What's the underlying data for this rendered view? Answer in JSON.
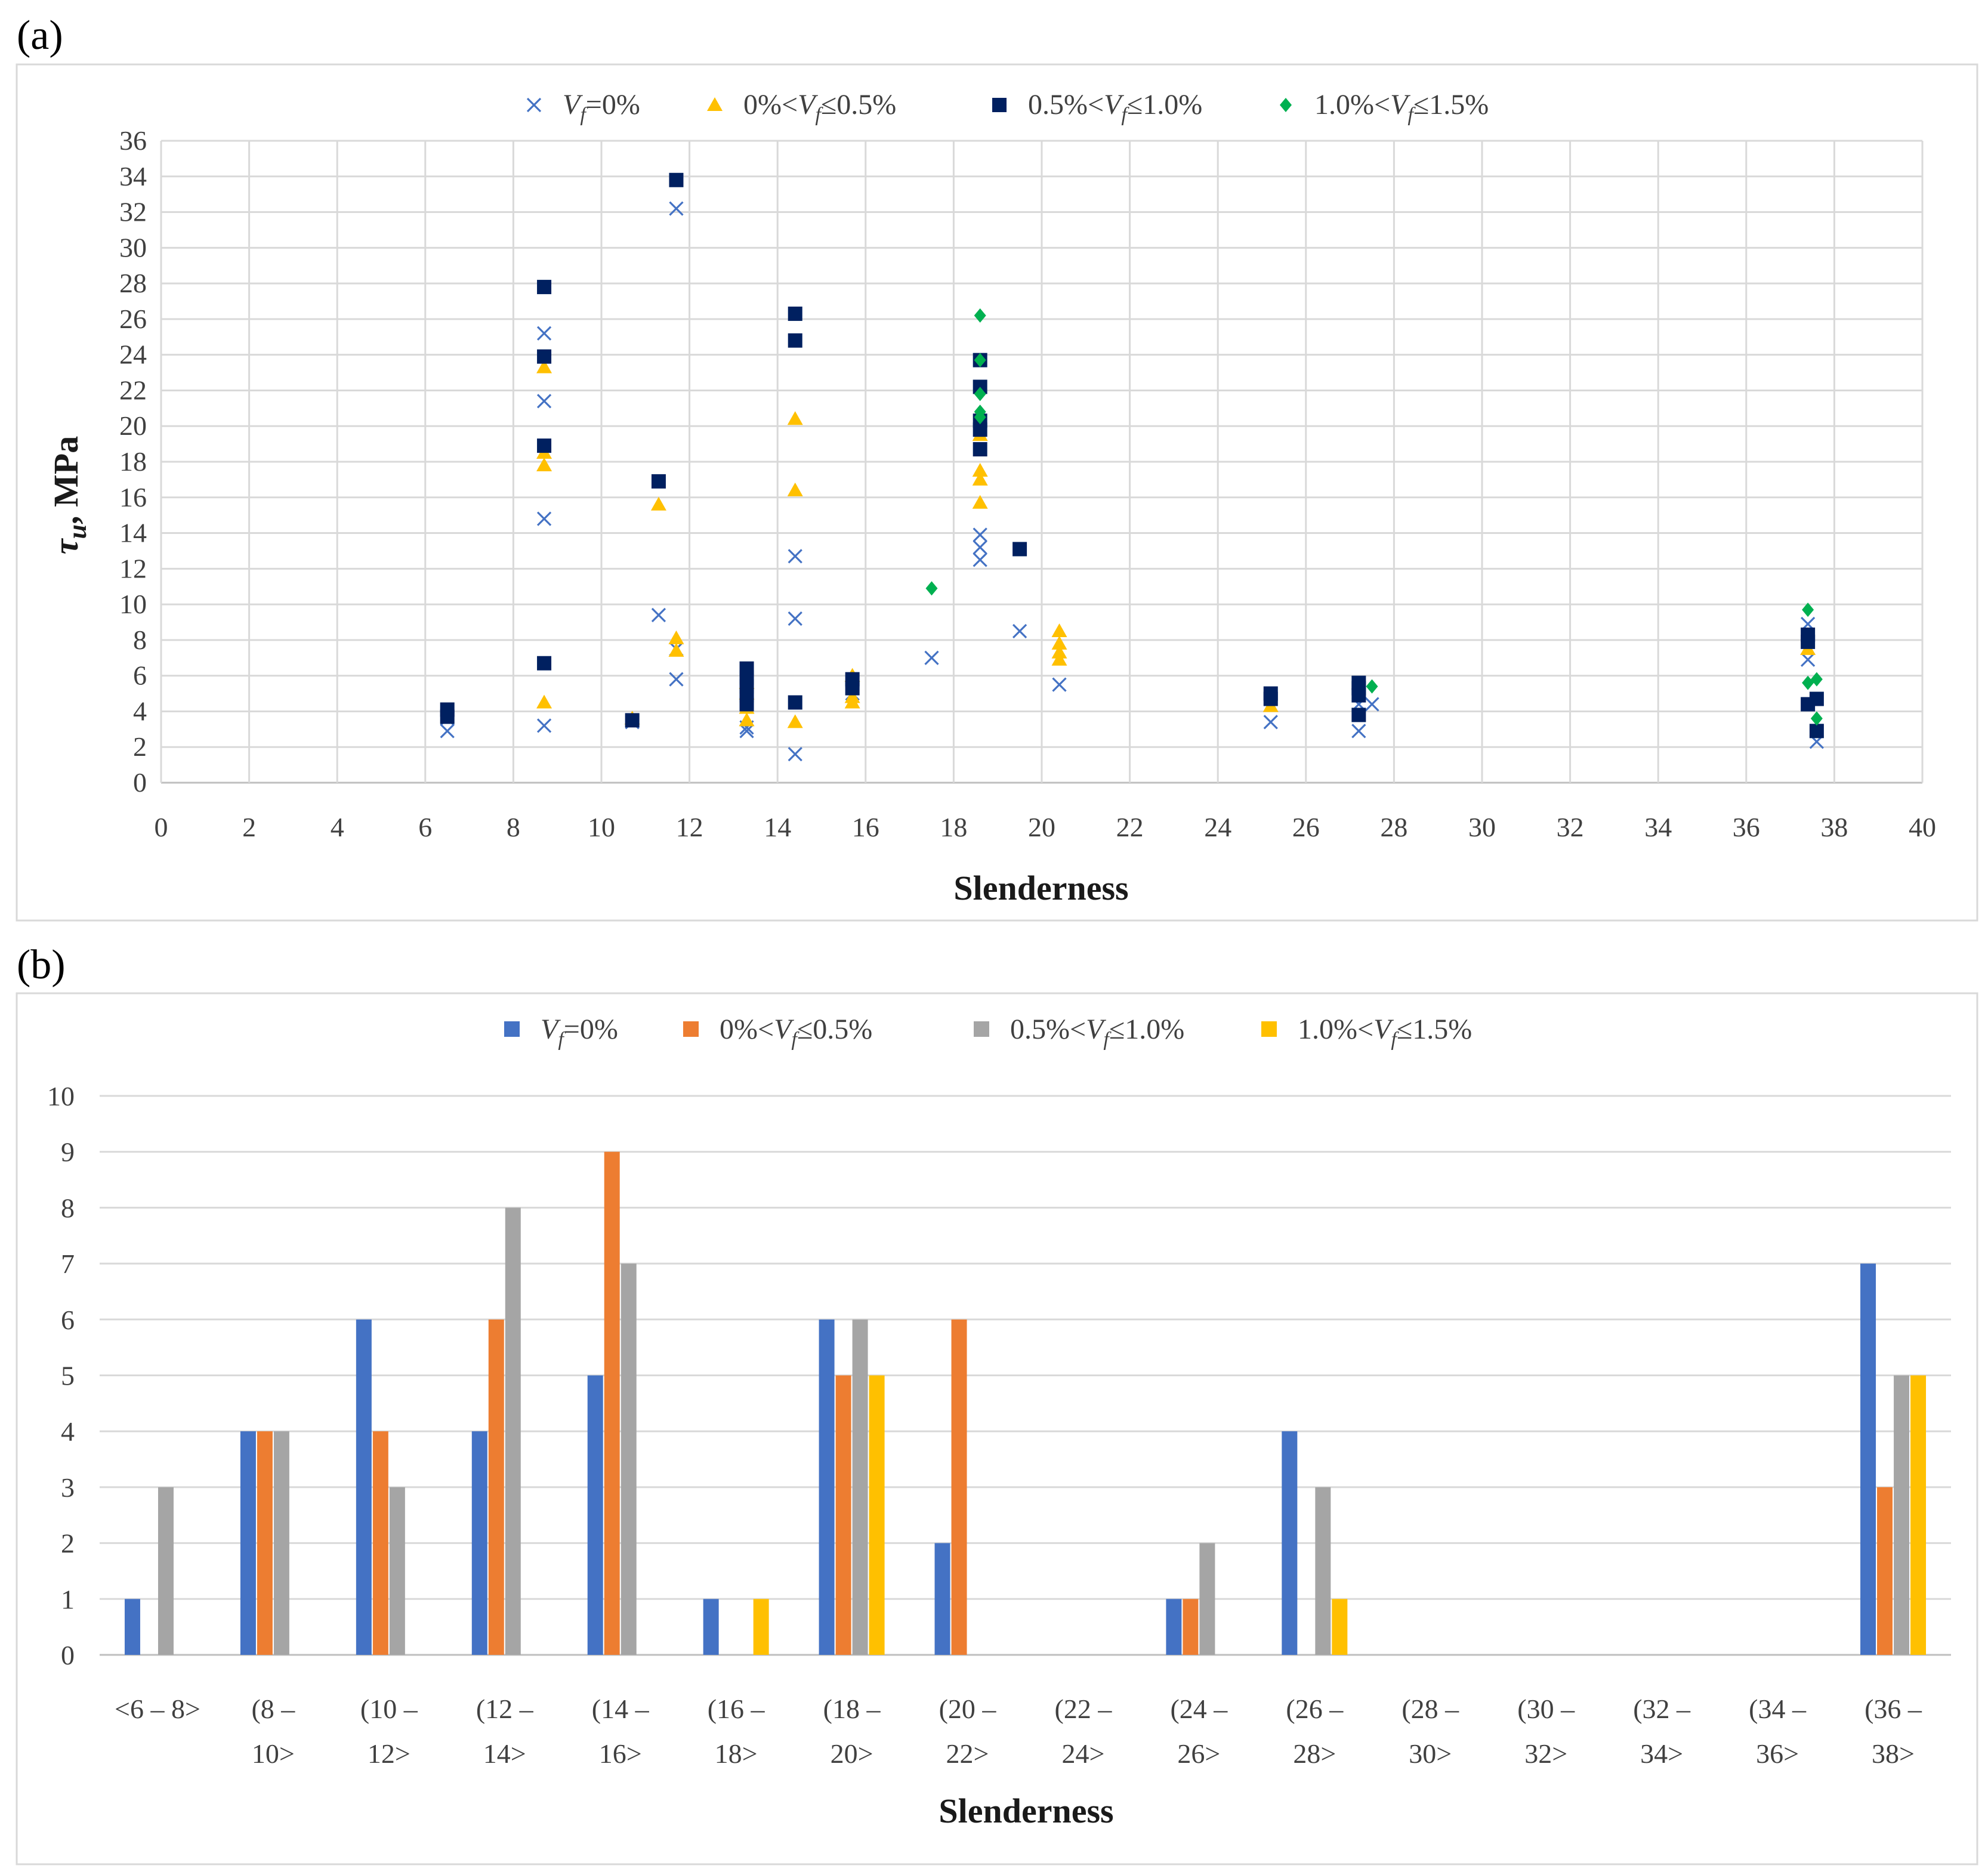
{
  "panels": {
    "a": {
      "label": "(a)"
    },
    "b": {
      "label": "(b)"
    }
  },
  "colors": {
    "a": {
      "vf0": "#4472C4",
      "vf05": "#FFC000",
      "vf10": "#002060",
      "vf15": "#00B050"
    },
    "b": {
      "vf0": "#4472C4",
      "vf05": "#ED7D31",
      "vf10": "#A5A5A5",
      "vf15": "#FFC000"
    }
  },
  "chart_data": [
    {
      "type": "scatter",
      "title": "",
      "xlabel": "Slenderness",
      "ylabel": "τu, MPa",
      "xlim": [
        0,
        40
      ],
      "ylim": [
        0,
        36
      ],
      "xticks": [
        "0",
        "2",
        "4",
        "6",
        "8",
        "10",
        "12",
        "14",
        "16",
        "18",
        "20",
        "22",
        "24",
        "26",
        "28",
        "30",
        "32",
        "34",
        "36",
        "38",
        "40"
      ],
      "yticks": [
        "0",
        "2",
        "4",
        "6",
        "8",
        "10",
        "12",
        "14",
        "16",
        "18",
        "20",
        "22",
        "24",
        "26",
        "28",
        "30",
        "32",
        "34",
        "36"
      ],
      "legend_position": "top",
      "series": [
        {
          "name": "Vf=0%",
          "marker": "x",
          "legend": {
            "pre": "V",
            "sub": "f",
            "post": "=0%"
          },
          "points": [
            [
              6.5,
              2.9
            ],
            [
              6.5,
              3.6
            ],
            [
              8.7,
              3.2
            ],
            [
              8.7,
              14.8
            ],
            [
              8.7,
              21.4
            ],
            [
              8.7,
              25.2
            ],
            [
              10.7,
              3.4
            ],
            [
              11.3,
              9.4
            ],
            [
              11.7,
              5.8
            ],
            [
              11.7,
              7.5
            ],
            [
              11.7,
              32.2
            ],
            [
              13.3,
              2.9
            ],
            [
              13.3,
              3.1
            ],
            [
              14.4,
              1.6
            ],
            [
              14.4,
              9.2
            ],
            [
              14.4,
              12.7
            ],
            [
              15.7,
              5.0
            ],
            [
              17.5,
              7.0
            ],
            [
              18.6,
              12.5
            ],
            [
              18.6,
              13.2
            ],
            [
              18.6,
              13.9
            ],
            [
              19.5,
              8.5
            ],
            [
              20.4,
              5.5
            ],
            [
              25.2,
              3.4
            ],
            [
              27.2,
              2.9
            ],
            [
              27.2,
              4.4
            ],
            [
              27.5,
              4.4
            ],
            [
              37.4,
              6.9
            ],
            [
              37.4,
              8.9
            ],
            [
              37.6,
              2.3
            ]
          ]
        },
        {
          "name": "0%<Vf≤0.5%",
          "marker": "triangle",
          "legend": {
            "pre": "0%<V",
            "sub": "f",
            "post": "≤0.5%"
          },
          "points": [
            [
              8.7,
              4.5
            ],
            [
              8.7,
              17.8
            ],
            [
              8.7,
              18.5
            ],
            [
              8.7,
              23.3
            ],
            [
              10.7,
              3.6
            ],
            [
              11.3,
              15.6
            ],
            [
              11.7,
              7.4
            ],
            [
              11.7,
              8.1
            ],
            [
              13.3,
              3.5
            ],
            [
              13.3,
              4.2
            ],
            [
              13.3,
              5.0
            ],
            [
              13.3,
              5.6
            ],
            [
              14.4,
              3.4
            ],
            [
              14.4,
              16.4
            ],
            [
              14.4,
              20.4
            ],
            [
              15.7,
              4.5
            ],
            [
              15.7,
              4.8
            ],
            [
              15.7,
              6.0
            ],
            [
              18.6,
              15.7
            ],
            [
              18.6,
              17.0
            ],
            [
              18.6,
              17.5
            ],
            [
              18.6,
              19.5
            ],
            [
              20.4,
              6.9
            ],
            [
              20.4,
              7.3
            ],
            [
              20.4,
              7.8
            ],
            [
              20.4,
              8.5
            ],
            [
              25.2,
              4.3
            ],
            [
              37.4,
              7.5
            ]
          ]
        },
        {
          "name": "0.5%<Vf≤1.0%",
          "marker": "square",
          "legend": {
            "pre": "0.5%<V",
            "sub": "f",
            "post": "≤1.0%"
          },
          "points": [
            [
              6.5,
              3.7
            ],
            [
              6.5,
              4.1
            ],
            [
              8.7,
              6.7
            ],
            [
              8.7,
              18.9
            ],
            [
              8.7,
              23.9
            ],
            [
              8.7,
              27.8
            ],
            [
              10.7,
              3.5
            ],
            [
              11.3,
              16.9
            ],
            [
              11.7,
              33.8
            ],
            [
              13.3,
              4.4
            ],
            [
              13.3,
              4.9
            ],
            [
              13.3,
              5.4
            ],
            [
              13.3,
              5.9
            ],
            [
              13.3,
              6.4
            ],
            [
              14.4,
              4.5
            ],
            [
              14.4,
              24.8
            ],
            [
              14.4,
              26.3
            ],
            [
              15.7,
              5.3
            ],
            [
              15.7,
              5.8
            ],
            [
              18.6,
              18.7
            ],
            [
              18.6,
              19.8
            ],
            [
              18.6,
              20.3
            ],
            [
              18.6,
              22.2
            ],
            [
              18.6,
              23.7
            ],
            [
              19.5,
              13.1
            ],
            [
              25.2,
              4.7
            ],
            [
              25.2,
              5.0
            ],
            [
              27.2,
              3.8
            ],
            [
              27.2,
              4.9
            ],
            [
              27.2,
              5.3
            ],
            [
              27.2,
              5.6
            ],
            [
              37.4,
              4.4
            ],
            [
              37.4,
              7.9
            ],
            [
              37.4,
              8.3
            ],
            [
              37.6,
              2.9
            ],
            [
              37.6,
              4.7
            ]
          ]
        },
        {
          "name": "1.0%<Vf≤1.5%",
          "marker": "diamond",
          "legend": {
            "pre": "1.0%<V",
            "sub": "f",
            "post": "≤1.5%"
          },
          "points": [
            [
              17.5,
              10.9
            ],
            [
              18.6,
              20.5
            ],
            [
              18.6,
              20.8
            ],
            [
              18.6,
              21.8
            ],
            [
              18.6,
              23.7
            ],
            [
              18.6,
              26.2
            ],
            [
              27.5,
              5.4
            ],
            [
              37.4,
              5.6
            ],
            [
              37.4,
              9.7
            ],
            [
              37.6,
              3.6
            ],
            [
              37.6,
              5.8
            ]
          ]
        }
      ]
    },
    {
      "type": "bar",
      "title": "",
      "xlabel": "Slenderness",
      "ylabel": "",
      "ylim": [
        0,
        10
      ],
      "yticks": [
        "0",
        "1",
        "2",
        "3",
        "4",
        "5",
        "6",
        "7",
        "8",
        "9",
        "10"
      ],
      "legend_position": "top",
      "categories": [
        [
          "<6 – 8>",
          ""
        ],
        [
          "(8 –",
          "10>"
        ],
        [
          "(10 –",
          "12>"
        ],
        [
          "(12 –",
          "14>"
        ],
        [
          "(14 –",
          "16>"
        ],
        [
          "(16 –",
          "18>"
        ],
        [
          "(18 –",
          "20>"
        ],
        [
          "(20 –",
          "22>"
        ],
        [
          "(22 –",
          "24>"
        ],
        [
          "(24 –",
          "26>"
        ],
        [
          "(26 –",
          "28>"
        ],
        [
          "(28 –",
          "30>"
        ],
        [
          "(30 –",
          "32>"
        ],
        [
          "(32 –",
          "34>"
        ],
        [
          "(34 –",
          "36>"
        ],
        [
          "(36 –",
          "38>"
        ]
      ],
      "series": [
        {
          "name": "Vf=0%",
          "legend": {
            "pre": "V",
            "sub": "f",
            "post": "=0%"
          },
          "values": [
            1,
            4,
            6,
            4,
            5,
            1,
            6,
            2,
            0,
            1,
            4,
            0,
            0,
            0,
            0,
            7
          ]
        },
        {
          "name": "0%<Vf≤0.5%",
          "legend": {
            "pre": "0%<V",
            "sub": "f",
            "post": "≤0.5%"
          },
          "values": [
            0,
            4,
            4,
            6,
            9,
            0,
            5,
            6,
            0,
            1,
            0,
            0,
            0,
            0,
            0,
            3
          ]
        },
        {
          "name": "0.5%<Vf≤1.0%",
          "legend": {
            "pre": "0.5%<V",
            "sub": "f",
            "post": "≤1.0%"
          },
          "values": [
            3,
            4,
            3,
            8,
            7,
            0,
            6,
            0,
            0,
            2,
            3,
            0,
            0,
            0,
            0,
            5
          ]
        },
        {
          "name": "1.0%<Vf≤1.5%",
          "legend": {
            "pre": "1.0%<V",
            "sub": "f",
            "post": "≤1.5%"
          },
          "values": [
            0,
            0,
            0,
            0,
            0,
            1,
            5,
            0,
            0,
            0,
            1,
            0,
            0,
            0,
            0,
            5
          ]
        }
      ]
    }
  ]
}
